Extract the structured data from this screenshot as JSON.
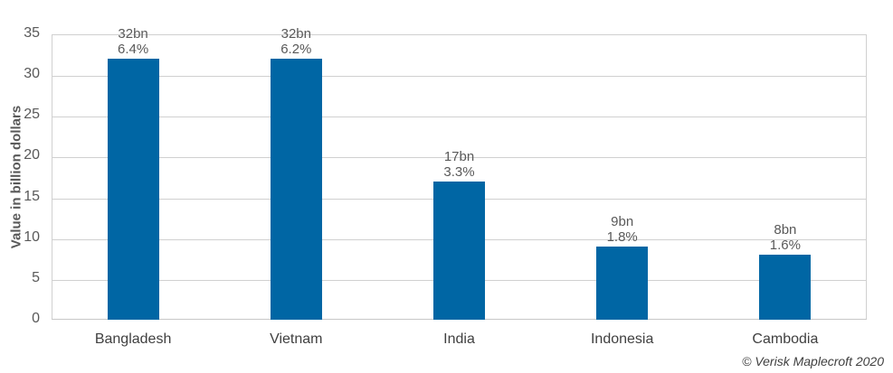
{
  "chart_data": {
    "type": "bar",
    "title": "",
    "xlabel": "",
    "ylabel": "Value in billion dollars",
    "ylim": [
      0,
      35
    ],
    "yticks": [
      0,
      5,
      10,
      15,
      20,
      25,
      30,
      35
    ],
    "grid": true,
    "categories": [
      "Bangladesh",
      "Vietnam",
      "India",
      "Indonesia",
      "Cambodia"
    ],
    "values": [
      32,
      32,
      17,
      9,
      8
    ],
    "value_labels": [
      "32bn",
      "32bn",
      "17bn",
      "9bn",
      "8bn"
    ],
    "pct_labels": [
      "6.4%",
      "6.2%",
      "3.3%",
      "1.8%",
      "1.6%"
    ],
    "bar_color": "#0066a4"
  },
  "credit": "© Verisk Maplecroft 2020"
}
